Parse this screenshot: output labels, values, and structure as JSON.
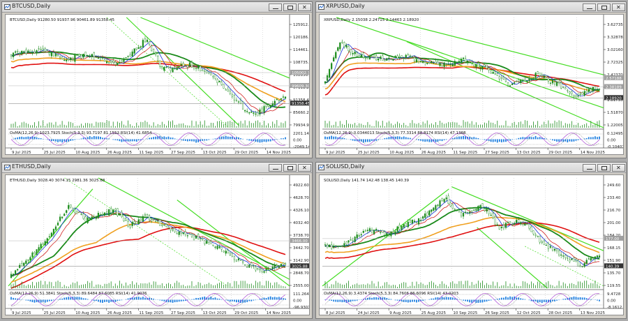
{
  "windows": [
    {
      "id": "btc",
      "title": "BTCUSD,Daily",
      "ohlc_info": "BTCUSD,Daily  91280.50 91937.96 90461.89 91358.45",
      "osc_info": "OsMA(12,26,9) 1023.7925  Stoch(5,3,3) 93.7197 81.1552  RSI(14) 41.6854",
      "price_labels": [
        "125912.20",
        "120186.50",
        "114461.20",
        "108735.50",
        "102836.70",
        "97111.20",
        "91358.45",
        "85660.20",
        "79934.90"
      ],
      "highlight_labels": [
        "105002.70",
        "99609.30",
        "91358.45"
      ],
      "osc_labels": [
        "2201.1453",
        "0.00",
        "-2049.146"
      ],
      "date_labels": [
        "9 Jul 2025",
        "25 Jul 2025",
        "10 Aug 2025",
        "26 Aug 2025",
        "11 Sep 2025",
        "27 Sep 2025",
        "13 Oct 2025",
        "29 Oct 2025",
        "14 Nov 2025"
      ],
      "accent": "#2a6fd6"
    },
    {
      "id": "xrp",
      "title": "XRPUSD,Daily",
      "ohlc_info": "XRPUSD,Daily  2.15038 2.24715 2.14463 2.18920",
      "osc_info": "OsMA(12,26,9) 0.0344013  Stoch(5,3,3) 77.3314 88.8174  RSI(14) 47.1368",
      "price_labels": [
        "3.62735",
        "3.32878",
        "3.02160",
        "2.72325",
        "2.42370",
        "2.12370",
        "1.81735",
        "1.51870",
        "1.22005"
      ],
      "highlight_labels": [
        "2.57188",
        "2.38189",
        "2.18920"
      ],
      "osc_labels": [
        "0.124956",
        "0.00",
        "-0.104073"
      ],
      "date_labels": [
        "9 Jul 2025",
        "25 Jul 2025",
        "10 Aug 2025",
        "26 Aug 2025",
        "11 Sep 2025",
        "27 Sep 2025",
        "13 Oct 2025",
        "29 Oct 2025",
        "14 Nov 2025"
      ],
      "accent": "#2a6fd6"
    },
    {
      "id": "eth",
      "title": "ETHUSD,Daily",
      "ohlc_info": "ETHUSD,Daily  3028.40 3074.15 2981.36 3025.88",
      "osc_info": "OsMA(12,26,9) 51.3841  Stoch(5,3,3) 89.6484 87.6085  RSI(14) 41.9076",
      "price_labels": [
        "4922.60",
        "4628.70",
        "4326.10",
        "4032.40",
        "3738.70",
        "3442.70",
        "3142.90",
        "2848.70",
        "2555.00"
      ],
      "highlight_labels": [
        "3466.00",
        "3025.88"
      ],
      "osc_labels": [
        "111.2647",
        "0.00",
        "-96.9301"
      ],
      "date_labels": [
        "9 Jul 2025",
        "25 Jul 2025",
        "10 Aug 2025",
        "26 Aug 2025",
        "11 Sep 2025",
        "27 Sep 2025",
        "13 Oct 2025",
        "29 Oct 2025",
        "14 Nov 2025"
      ],
      "accent": "#2a6fd6"
    },
    {
      "id": "sol",
      "title": "SOLUSD,Daily",
      "ohlc_info": "SOLUSD,Daily  141.74 142.48 138.45 140.39",
      "osc_info": "OsMA(12,26,9) 3.4374  Stoch(5,3,3) 84.7606 86.6096  RSI(14) 43.0203",
      "price_labels": [
        "249.60",
        "233.40",
        "216.70",
        "201.00",
        "184.20",
        "168.15",
        "151.90",
        "135.70",
        "119.55"
      ],
      "highlight_labels": [
        "177.00",
        "140.39"
      ],
      "osc_labels": [
        "9.4728",
        "0.00",
        "-8.1612"
      ],
      "date_labels": [
        "8 Jul 2025",
        "24 Jul 2025",
        "9 Aug 2025",
        "25 Aug 2025",
        "10 Sep 2025",
        "26 Sep 2025",
        "12 Oct 2025",
        "28 Oct 2025",
        "13 Nov 2025"
      ],
      "accent": "#2a6fd6"
    }
  ],
  "colors": {
    "ma_green": "#1a8a1a",
    "ma_orange": "#f0a020",
    "ma_red": "#e01010",
    "channel": "#44dd22",
    "candle": "#1c8c1c",
    "tenkan": "#1530d8",
    "kijun": "#d02020"
  }
}
